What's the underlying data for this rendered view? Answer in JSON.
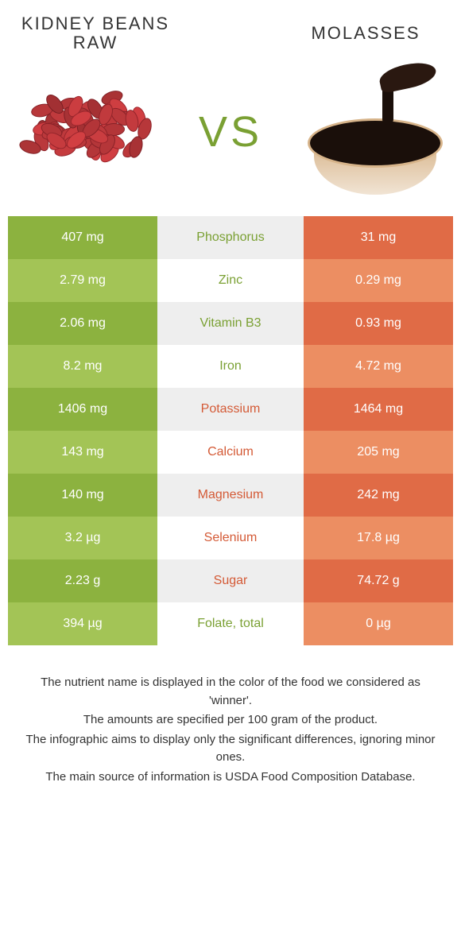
{
  "colors": {
    "left_even": "#8cb23f",
    "left_odd": "#a3c456",
    "mid_even": "#eeeeee",
    "mid_odd": "#ffffff",
    "right_even": "#e06b46",
    "right_odd": "#ec8e62",
    "nutrient_left_color": "#7aa033",
    "nutrient_right_color": "#d45a36",
    "white": "#ffffff",
    "vs_color": "#7aa033"
  },
  "header": {
    "left_title": "Kidney Beans Raw",
    "right_title": "Molasses",
    "vs": "VS"
  },
  "rows": [
    {
      "nutrient": "Phosphorus",
      "left": "407 mg",
      "right": "31 mg",
      "winner": "left"
    },
    {
      "nutrient": "Zinc",
      "left": "2.79 mg",
      "right": "0.29 mg",
      "winner": "left"
    },
    {
      "nutrient": "Vitamin B3",
      "left": "2.06 mg",
      "right": "0.93 mg",
      "winner": "left"
    },
    {
      "nutrient": "Iron",
      "left": "8.2 mg",
      "right": "4.72 mg",
      "winner": "left"
    },
    {
      "nutrient": "Potassium",
      "left": "1406 mg",
      "right": "1464 mg",
      "winner": "right"
    },
    {
      "nutrient": "Calcium",
      "left": "143 mg",
      "right": "205 mg",
      "winner": "right"
    },
    {
      "nutrient": "Magnesium",
      "left": "140 mg",
      "right": "242 mg",
      "winner": "right"
    },
    {
      "nutrient": "Selenium",
      "left": "3.2 µg",
      "right": "17.8 µg",
      "winner": "right"
    },
    {
      "nutrient": "Sugar",
      "left": "2.23 g",
      "right": "74.72 g",
      "winner": "right"
    },
    {
      "nutrient": "Folate, total",
      "left": "394 µg",
      "right": "0 µg",
      "winner": "left"
    }
  ],
  "footnotes": [
    "The nutrient name is displayed in the color of the food we considered as 'winner'.",
    "The amounts are specified per 100 gram of the product.",
    "The infographic aims to display only the significant differences, ignoring minor ones.",
    "The main source of information is USDA Food Composition Database."
  ]
}
